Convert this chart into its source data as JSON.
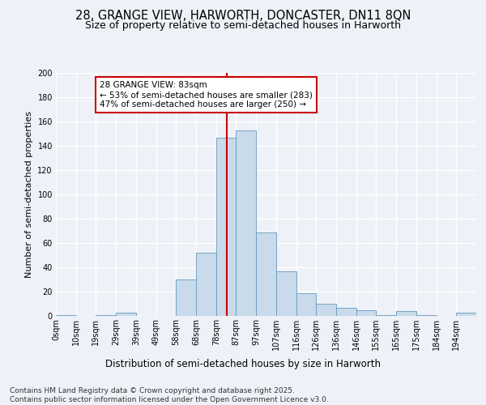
{
  "title1": "28, GRANGE VIEW, HARWORTH, DONCASTER, DN11 8QN",
  "title2": "Size of property relative to semi-detached houses in Harworth",
  "xlabel": "Distribution of semi-detached houses by size in Harworth",
  "ylabel": "Number of semi-detached properties",
  "bin_labels": [
    "0sqm",
    "10sqm",
    "19sqm",
    "29sqm",
    "39sqm",
    "49sqm",
    "58sqm",
    "68sqm",
    "78sqm",
    "87sqm",
    "97sqm",
    "107sqm",
    "116sqm",
    "126sqm",
    "136sqm",
    "146sqm",
    "155sqm",
    "165sqm",
    "175sqm",
    "184sqm",
    "194sqm"
  ],
  "bar_heights": [
    1,
    0,
    1,
    3,
    0,
    0,
    30,
    52,
    147,
    153,
    69,
    37,
    19,
    10,
    7,
    5,
    1,
    4,
    1,
    0,
    3
  ],
  "bar_color": "#c9daea",
  "bar_edge_color": "#6699bb",
  "vline_color": "#cc0000",
  "annotation_text": "28 GRANGE VIEW: 83sqm\n← 53% of semi-detached houses are smaller (283)\n47% of semi-detached houses are larger (250) →",
  "annotation_box_color": "#ffffff",
  "annotation_box_edge": "#cc0000",
  "ylim": [
    0,
    200
  ],
  "yticks": [
    0,
    20,
    40,
    60,
    80,
    100,
    120,
    140,
    160,
    180,
    200
  ],
  "background_color": "#eef2f8",
  "grid_color": "#ffffff",
  "footer_text": "Contains HM Land Registry data © Crown copyright and database right 2025.\nContains public sector information licensed under the Open Government Licence v3.0.",
  "title1_fontsize": 10.5,
  "title2_fontsize": 9,
  "xlabel_fontsize": 8.5,
  "ylabel_fontsize": 8,
  "tick_fontsize": 7,
  "annotation_fontsize": 7.5,
  "footer_fontsize": 6.5
}
